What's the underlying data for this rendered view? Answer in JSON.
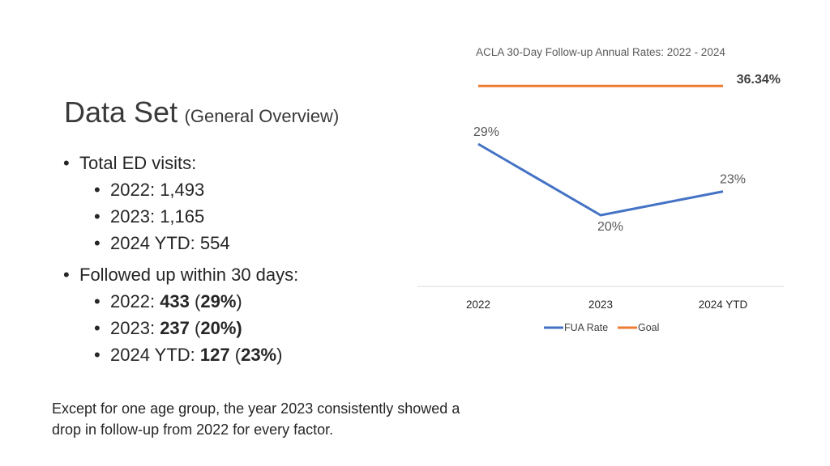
{
  "slide": {
    "title_main": "Data Set",
    "title_sub": "(General Overview)",
    "bullets": [
      {
        "label": "Total ED visits:"
      },
      {
        "year": "2022:",
        "count": "1,493"
      },
      {
        "year": "2023:",
        "count": "1,165"
      },
      {
        "year": "2024 YTD:",
        "count": "554"
      },
      {
        "label": "Followed up within 30 days:"
      },
      {
        "year": "2022:",
        "count": "433",
        "open": "(",
        "pct": "29%",
        "close": ")"
      },
      {
        "year": "2023:",
        "count": "237",
        "open": "(",
        "pct": "20%)",
        "close": ""
      },
      {
        "year": "2024 YTD:",
        "count": "127",
        "open": "(",
        "pct": "23%",
        "close": ")"
      }
    ],
    "note": "Except for one age group, the year 2023 consistently showed a drop in follow-up from 2022 for every factor."
  },
  "chart_data": {
    "type": "line",
    "title": "ACLA 30-Day Follow-up Annual Rates: 2022 - 2024",
    "categories": [
      "2022",
      "2023",
      "2024 YTD"
    ],
    "series": [
      {
        "name": "FUA Rate",
        "values": [
          29,
          20,
          23
        ],
        "labels": [
          "29%",
          "20%",
          "23%"
        ],
        "color": "#4472c4"
      },
      {
        "name": "Goal",
        "values": [
          36.34,
          36.34,
          36.34
        ],
        "end_label": "36.34%",
        "color": "#ed7d31"
      }
    ],
    "legend_position": "bottom",
    "grid": false,
    "ylim": [
      11,
      38
    ]
  }
}
